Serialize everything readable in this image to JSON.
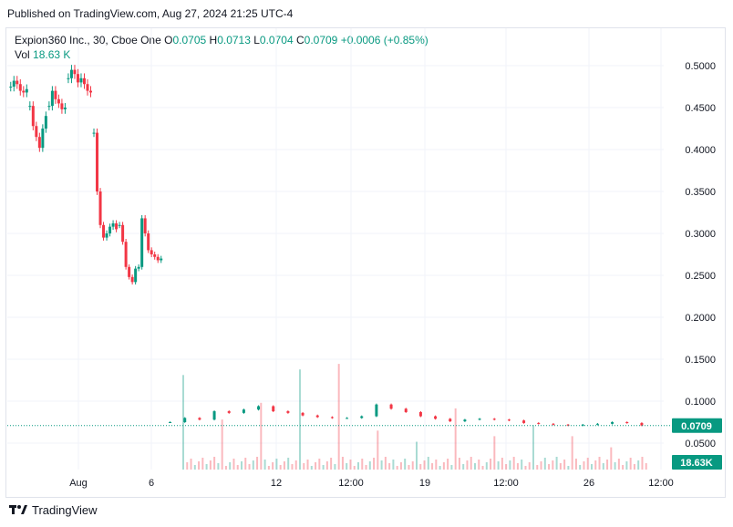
{
  "header": {
    "published": "Published on TradingView.com, Aug 27, 2024 21:25 UTC-4"
  },
  "legend": {
    "symbol": "Expion360 Inc., 30, Cboe One",
    "o_label": "O",
    "o_value": "0.0705",
    "h_label": "H",
    "h_value": "0.0713",
    "l_label": "L",
    "l_value": "0.0704",
    "c_label": "C",
    "c_value": "0.0709",
    "change": "+0.0006 (+0.85%)",
    "vol_label": "Vol",
    "vol_value": "18.63 K"
  },
  "footer": {
    "brand": "TradingView"
  },
  "colors": {
    "up": "#089981",
    "down": "#f23645",
    "grid": "#f0f3fa",
    "text": "#131722",
    "price_tag": "#089981"
  },
  "chart_data": {
    "type": "candlestick",
    "y_axis": {
      "range": [
        0.03,
        0.5354
      ],
      "ticks": [
        "0.5000",
        "0.4500",
        "0.4000",
        "0.3500",
        "0.3000",
        "0.2500",
        "0.2000",
        "0.1500",
        "0.1000",
        "0.0500"
      ],
      "side": "right"
    },
    "x_axis": {
      "ticks": [
        "Aug",
        "6",
        "12",
        "12:00",
        "19",
        "12:00",
        "26",
        "12:00"
      ]
    },
    "last_price": "0.0709",
    "last_volume": "18.63K",
    "price_segments": [
      {
        "from": 0,
        "to": 6,
        "points": [
          0.475,
          0.482,
          0.478,
          0.47,
          0.468,
          0.472
        ]
      },
      {
        "from": 6,
        "to": 12,
        "points": [
          0.452,
          0.428,
          0.415,
          0.402,
          0.425,
          0.44
        ]
      },
      {
        "from": 12,
        "to": 18,
        "points": [
          0.452,
          0.47,
          0.46,
          0.455,
          0.448,
          0.45
        ]
      },
      {
        "from": 18,
        "to": 26,
        "points": [
          0.485,
          0.495,
          0.49,
          0.48,
          0.485,
          0.478,
          0.47,
          0.468
        ]
      },
      {
        "from": 26,
        "to": 34,
        "points": [
          0.42,
          0.35,
          0.31,
          0.295,
          0.3,
          0.308,
          0.312,
          0.305
        ]
      },
      {
        "from": 34,
        "to": 48,
        "points": [
          0.31,
          0.29,
          0.26,
          0.248,
          0.242,
          0.258,
          0.26,
          0.318,
          0.3,
          0.28,
          0.275,
          0.272,
          0.268,
          0.27
        ]
      },
      {
        "from": 48,
        "to": 200,
        "points": [
          0.075,
          0.08,
          0.078,
          0.088,
          0.086,
          0.09,
          0.094,
          0.088,
          0.086,
          0.083,
          0.081,
          0.08,
          0.08,
          0.082,
          0.096,
          0.091,
          0.087,
          0.082,
          0.079,
          0.076,
          0.078,
          0.079,
          0.078,
          0.077,
          0.074,
          0.073,
          0.072,
          0.071,
          0.072,
          0.073,
          0.075,
          0.074,
          0.071
        ]
      }
    ],
    "volume_spikes": [
      0.85,
      0.45,
      0.6,
      0.9,
      0.95,
      0.35,
      0.25,
      0.55,
      0.3,
      0.4,
      0.3,
      0.2,
      0.25
    ]
  }
}
